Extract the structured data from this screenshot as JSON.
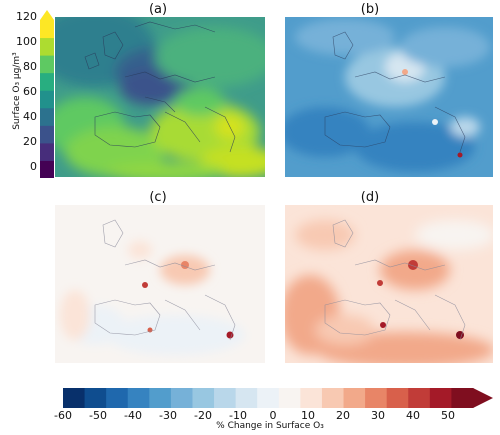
{
  "panels": [
    {
      "label": "(a)"
    },
    {
      "label": "(b)"
    },
    {
      "label": "(c)"
    },
    {
      "label": "(d)"
    }
  ],
  "colorbar_vertical": {
    "label": "Surface O₃ µg/m³",
    "ticks": [
      "0",
      "20",
      "40",
      "60",
      "80",
      "100",
      "120"
    ],
    "colors": [
      "#440154",
      "#472d7b",
      "#3b528b",
      "#2c728e",
      "#21918c",
      "#28ae80",
      "#5ec962",
      "#addc30",
      "#fde725"
    ]
  },
  "colorbar_horizontal": {
    "label": "% Change in Surface O₃",
    "ticks": [
      "-60",
      "-50",
      "-40",
      "-30",
      "-20",
      "-10",
      "0",
      "10",
      "20",
      "30",
      "40",
      "50"
    ],
    "colors": [
      "#08306b",
      "#0f4d8f",
      "#1f68ad",
      "#3683c0",
      "#529dcc",
      "#76b1d8",
      "#98c7e1",
      "#b9d7ea",
      "#d6e6f1",
      "#ecf2f7",
      "#f8f4f1",
      "#fbe4d8",
      "#f8c9b2",
      "#f2a98a",
      "#e88567",
      "#d8604b",
      "#c13c38",
      "#a41a28",
      "#7f0e1f"
    ]
  }
}
